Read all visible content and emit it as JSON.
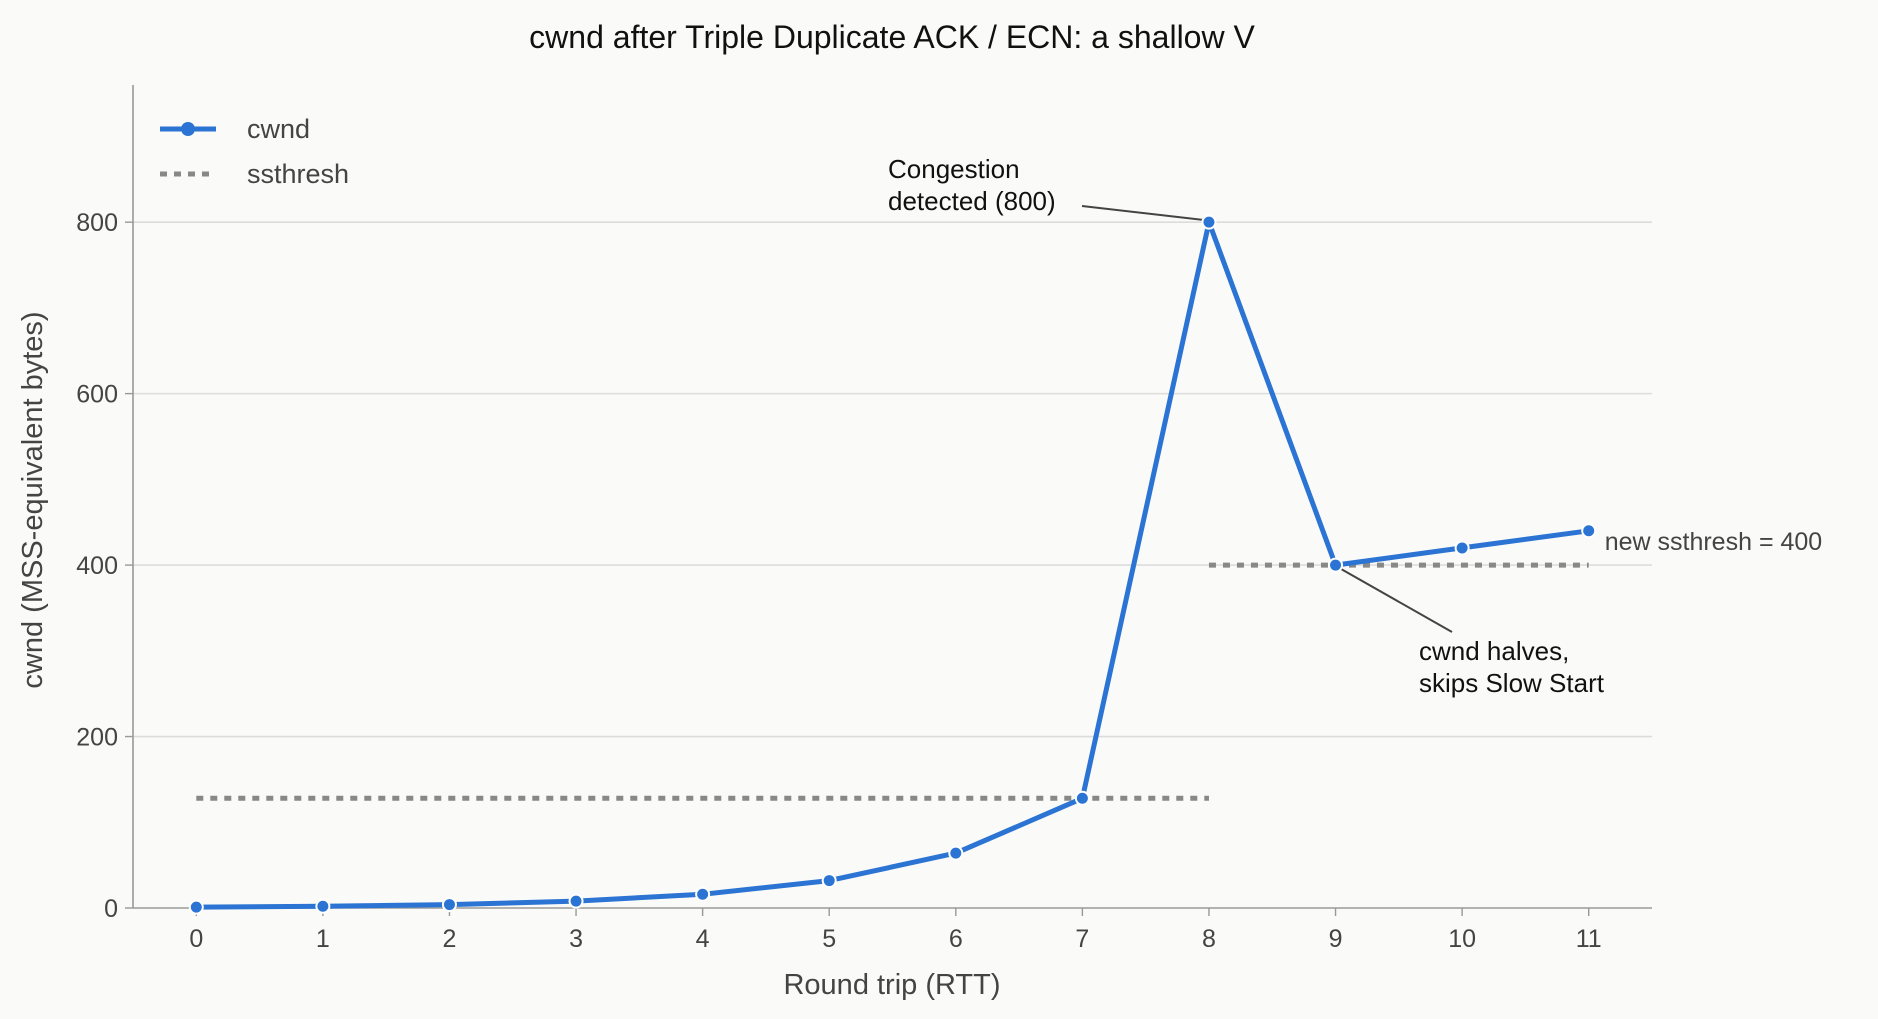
{
  "chart_data": {
    "type": "line",
    "title": "cwnd after Triple Duplicate ACK / ECN: a shallow V",
    "xlabel": "Round trip (RTT)",
    "ylabel": "cwnd (MSS-equivalent bytes)",
    "xlim": [
      -0.5,
      11.5
    ],
    "ylim": [
      0,
      960
    ],
    "x_ticks": [
      0,
      1,
      2,
      3,
      4,
      5,
      6,
      7,
      8,
      9,
      10,
      11
    ],
    "y_ticks": [
      0,
      200,
      400,
      600,
      800
    ],
    "grid": "horizontal",
    "legend_position": "top-left",
    "series": [
      {
        "name": "cwnd",
        "style": "solid-line-with-markers",
        "color": "#2b74d3",
        "points": [
          {
            "x": 0,
            "y": 1
          },
          {
            "x": 1,
            "y": 2
          },
          {
            "x": 2,
            "y": 4
          },
          {
            "x": 3,
            "y": 8
          },
          {
            "x": 4,
            "y": 16
          },
          {
            "x": 5,
            "y": 32
          },
          {
            "x": 6,
            "y": 64
          },
          {
            "x": 7,
            "y": 128
          },
          {
            "x": 8,
            "y": 800
          },
          {
            "x": 9,
            "y": 400
          },
          {
            "x": 10,
            "y": 420
          },
          {
            "x": 11,
            "y": 440
          }
        ]
      },
      {
        "name": "ssthresh",
        "style": "dotted-line",
        "color": "#888888",
        "segments": [
          {
            "x_start": 0,
            "x_end": 8,
            "y": 128
          },
          {
            "x_start": 8,
            "x_end": 11,
            "y": 400
          }
        ]
      }
    ],
    "annotations": [
      {
        "lines": [
          "Congestion",
          "detected (800)"
        ],
        "target": {
          "x": 8,
          "y": 800
        }
      },
      {
        "lines": [
          "cwnd halves,",
          "skips Slow Start"
        ],
        "target": {
          "x": 9,
          "y": 400
        }
      }
    ],
    "side_label": {
      "text": "new ssthresh = 400",
      "anchor": {
        "x": 11,
        "y": 400
      }
    }
  }
}
